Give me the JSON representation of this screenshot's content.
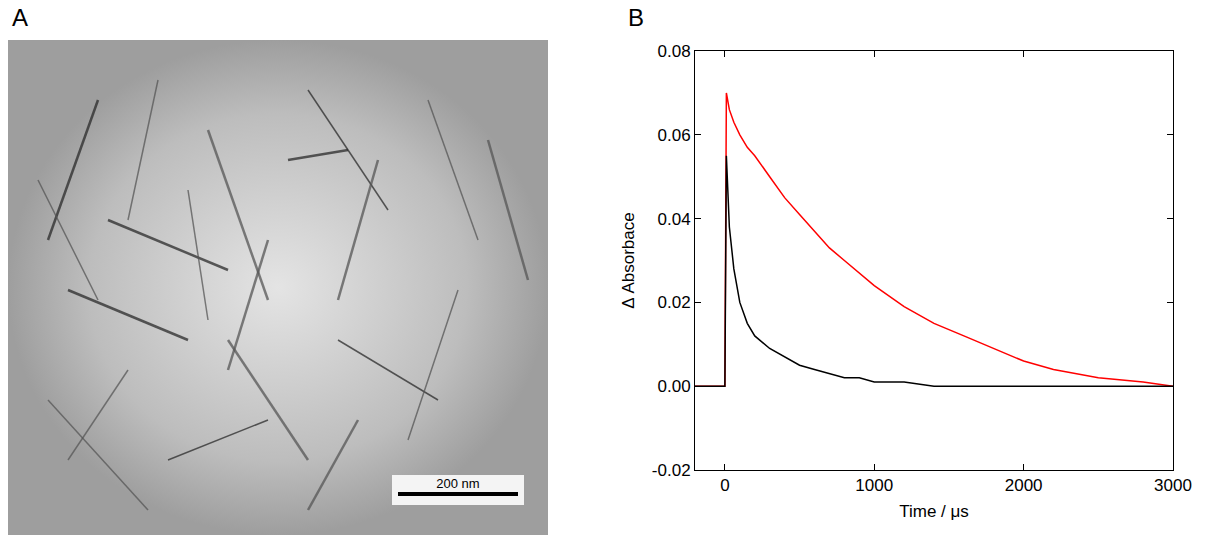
{
  "image_panel": {
    "letter": "A",
    "scale_bar_label": "200 nm"
  },
  "chart_panel_letter": "B",
  "chart_data": {
    "type": "line",
    "x_label": "Time / μs",
    "y_label": "Δ Absorbace",
    "x": [
      -200,
      -100,
      -20,
      0,
      10,
      30,
      60,
      100,
      150,
      200,
      300,
      400,
      500,
      600,
      700,
      800,
      900,
      1000,
      1200,
      1400,
      1600,
      1800,
      2000,
      2200,
      2500,
      2800,
      3000
    ],
    "series": [
      {
        "color": "#ff0000",
        "values": [
          0,
          0,
          0,
          0,
          0.07,
          0.066,
          0.063,
          0.06,
          0.057,
          0.055,
          0.05,
          0.045,
          0.041,
          0.037,
          0.033,
          0.03,
          0.027,
          0.024,
          0.019,
          0.015,
          0.012,
          0.009,
          0.006,
          0.004,
          0.002,
          0.001,
          0
        ]
      },
      {
        "color": "#000000",
        "values": [
          0,
          0,
          0,
          0,
          0.055,
          0.038,
          0.028,
          0.02,
          0.015,
          0.012,
          0.009,
          0.007,
          0.005,
          0.004,
          0.003,
          0.002,
          0.002,
          0.001,
          0.001,
          0,
          0,
          0,
          0,
          0,
          0,
          0,
          0
        ]
      }
    ],
    "xlim": [
      -200,
      3000
    ],
    "xticks": [
      0,
      1000,
      2000,
      3000
    ],
    "ylim": [
      -0.02,
      0.08
    ],
    "yticks": [
      -0.02,
      {
        "value": 0,
        "label": "0.00"
      },
      0.02,
      0.04,
      0.06,
      0.08
    ],
    "grid": false
  }
}
